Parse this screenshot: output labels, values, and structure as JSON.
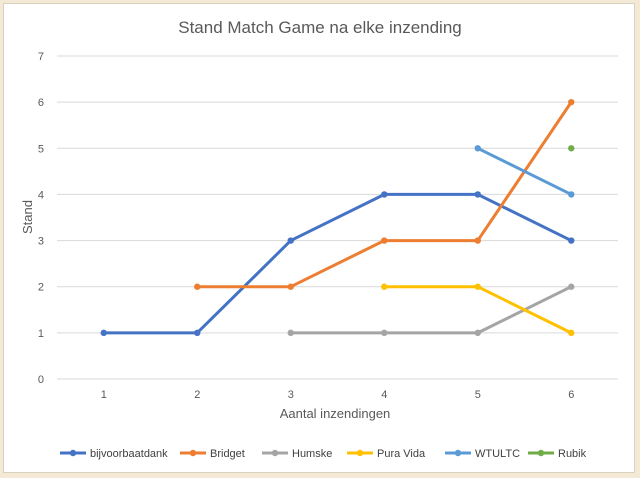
{
  "chart_data": {
    "type": "line",
    "title": "Stand Match Game na elke inzending",
    "xlabel": "Aantal inzendingen",
    "ylabel": "Stand",
    "x": [
      1,
      2,
      3,
      4,
      5,
      6
    ],
    "xlim": [
      0.5,
      6.5
    ],
    "ylim": [
      0,
      7
    ],
    "yticks": [
      0,
      1,
      2,
      3,
      4,
      5,
      6,
      7
    ],
    "grid": true,
    "legend_position": "bottom",
    "series": [
      {
        "name": "bijvoorbaatdank",
        "color": "#4472c4",
        "values": [
          1,
          1,
          3,
          4,
          4,
          3
        ]
      },
      {
        "name": "Bridget",
        "color": "#ed7d31",
        "values": [
          null,
          2,
          2,
          3,
          3,
          6
        ]
      },
      {
        "name": "Humske",
        "color": "#a5a5a5",
        "values": [
          null,
          null,
          1,
          1,
          1,
          2
        ]
      },
      {
        "name": "Pura Vida",
        "color": "#ffc000",
        "values": [
          null,
          null,
          null,
          2,
          2,
          1
        ]
      },
      {
        "name": "WTULTC",
        "color": "#5b9bd5",
        "values": [
          null,
          null,
          null,
          null,
          5,
          4
        ]
      },
      {
        "name": "Rubik",
        "color": "#70ad47",
        "values": [
          null,
          null,
          null,
          null,
          null,
          5
        ]
      }
    ]
  }
}
